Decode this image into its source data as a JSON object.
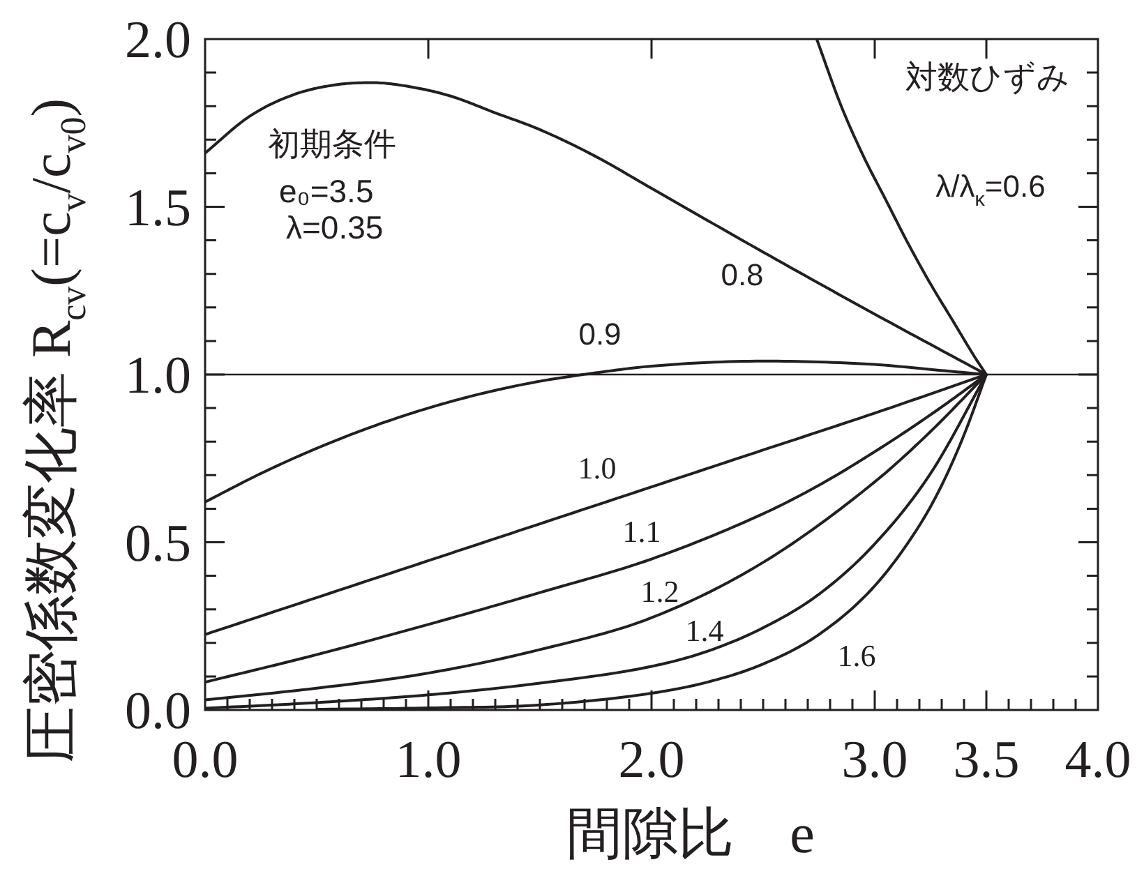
{
  "chart_data": {
    "type": "line",
    "xlabel": "間隙比　e",
    "ylabel": "圧密係数変化率 R$_{cv}$(=c$_{v}$/c$_{v0}$)",
    "xlim": [
      0,
      4
    ],
    "ylim": [
      0,
      2
    ],
    "xticks": [
      {
        "value": 0,
        "label": "0.0"
      },
      {
        "value": 0.1,
        "label": null
      },
      {
        "value": 0.2,
        "label": null
      },
      {
        "value": 0.3,
        "label": null
      },
      {
        "value": 0.4,
        "label": null
      },
      {
        "value": 0.5,
        "label": null
      },
      {
        "value": 0.6,
        "label": null
      },
      {
        "value": 0.7,
        "label": null
      },
      {
        "value": 0.8,
        "label": null
      },
      {
        "value": 0.9,
        "label": null
      },
      {
        "value": 1,
        "label": "1.0"
      },
      {
        "value": 1.1,
        "label": null
      },
      {
        "value": 1.2,
        "label": null
      },
      {
        "value": 1.3,
        "label": null
      },
      {
        "value": 1.4,
        "label": null
      },
      {
        "value": 1.5,
        "label": null
      },
      {
        "value": 1.6,
        "label": null
      },
      {
        "value": 1.7,
        "label": null
      },
      {
        "value": 1.8,
        "label": null
      },
      {
        "value": 1.9,
        "label": null
      },
      {
        "value": 2,
        "label": "2.0"
      },
      {
        "value": 2.1,
        "label": null
      },
      {
        "value": 2.2,
        "label": null
      },
      {
        "value": 2.3,
        "label": null
      },
      {
        "value": 2.4,
        "label": null
      },
      {
        "value": 2.5,
        "label": null
      },
      {
        "value": 2.6,
        "label": null
      },
      {
        "value": 2.7,
        "label": null
      },
      {
        "value": 2.8,
        "label": null
      },
      {
        "value": 2.9,
        "label": null
      },
      {
        "value": 3,
        "label": "3.0"
      },
      {
        "value": 3.1,
        "label": null
      },
      {
        "value": 3.2,
        "label": null
      },
      {
        "value": 3.3,
        "label": null
      },
      {
        "value": 3.4,
        "label": null
      },
      {
        "value": 3.5,
        "label": "3.5"
      },
      {
        "value": 3.6,
        "label": null
      },
      {
        "value": 3.7,
        "label": null
      },
      {
        "value": 3.8,
        "label": null
      },
      {
        "value": 3.9,
        "label": null
      },
      {
        "value": 4,
        "label": "4.0"
      }
    ],
    "yticks": [
      {
        "value": 0,
        "label": "0.0"
      },
      {
        "value": 0.1,
        "label": null
      },
      {
        "value": 0.2,
        "label": null
      },
      {
        "value": 0.3,
        "label": null
      },
      {
        "value": 0.4,
        "label": null
      },
      {
        "value": 0.5,
        "label": "0.5"
      },
      {
        "value": 0.6,
        "label": null
      },
      {
        "value": 0.7,
        "label": null
      },
      {
        "value": 0.8,
        "label": null
      },
      {
        "value": 0.9,
        "label": null
      },
      {
        "value": 1,
        "label": "1.0"
      },
      {
        "value": 1.1,
        "label": null
      },
      {
        "value": 1.2,
        "label": null
      },
      {
        "value": 1.3,
        "label": null
      },
      {
        "value": 1.4,
        "label": null
      },
      {
        "value": 1.5,
        "label": "1.5"
      },
      {
        "value": 1.6,
        "label": null
      },
      {
        "value": 1.7,
        "label": null
      },
      {
        "value": 1.8,
        "label": null
      },
      {
        "value": 1.9,
        "label": null
      },
      {
        "value": 2,
        "label": "2.0"
      }
    ],
    "series": [
      {
        "name": "λ/λ$_{κ}$=0.6",
        "color": "#231f20",
        "x": [
          2.74,
          2.85,
          2.95,
          3.05,
          3.15,
          3.25,
          3.35,
          3.45,
          3.5
        ],
        "values": [
          2.0,
          1.8,
          1.65,
          1.52,
          1.39,
          1.27,
          1.16,
          1.05,
          1.0
        ]
      },
      {
        "name": "0.8",
        "color": "#231f20",
        "x": [
          0,
          0.2,
          0.4,
          0.6,
          0.75,
          0.9,
          1.1,
          1.3,
          1.5,
          1.75,
          2.0,
          2.5,
          3.0,
          3.5
        ],
        "values": [
          1.66,
          1.77,
          1.835,
          1.865,
          1.87,
          1.86,
          1.83,
          1.78,
          1.73,
          1.65,
          1.555,
          1.365,
          1.18,
          1.0
        ]
      },
      {
        "name": "0.9",
        "color": "#231f20",
        "x": [
          0,
          0.25,
          0.5,
          0.75,
          1.0,
          1.25,
          1.5,
          1.75,
          2.0,
          2.5,
          3.0,
          3.25,
          3.5
        ],
        "values": [
          0.62,
          0.705,
          0.78,
          0.845,
          0.9,
          0.945,
          0.98,
          1.005,
          1.025,
          1.04,
          1.03,
          1.015,
          1.0
        ]
      },
      {
        "name": "1.0",
        "color": "#231f20",
        "x": [
          0,
          0.5,
          1.0,
          1.5,
          2.0,
          2.5,
          3.0,
          3.5
        ],
        "values": [
          0.225,
          0.335,
          0.445,
          0.555,
          0.665,
          0.775,
          0.885,
          1.0
        ]
      },
      {
        "name": "1.1",
        "color": "#231f20",
        "x": [
          0,
          0.5,
          1.0,
          1.5,
          2.0,
          2.5,
          2.75,
          3.0,
          3.25,
          3.5
        ],
        "values": [
          0.083,
          0.165,
          0.255,
          0.35,
          0.45,
          0.585,
          0.67,
          0.77,
          0.88,
          1.0
        ]
      },
      {
        "name": "1.2",
        "color": "#231f20",
        "x": [
          0,
          0.5,
          1.0,
          1.5,
          2.0,
          2.5,
          3.0,
          3.25,
          3.5
        ],
        "values": [
          0.03,
          0.065,
          0.11,
          0.18,
          0.275,
          0.44,
          0.68,
          0.83,
          1.0
        ]
      },
      {
        "name": "1.4",
        "color": "#231f20",
        "x": [
          0,
          0.5,
          1.0,
          1.5,
          2.0,
          2.25,
          2.5,
          2.75,
          3.0,
          3.25,
          3.5
        ],
        "values": [
          0.005,
          0.022,
          0.045,
          0.08,
          0.13,
          0.175,
          0.245,
          0.345,
          0.495,
          0.705,
          1.0
        ]
      },
      {
        "name": "1.6",
        "color": "#231f20",
        "x": [
          0.5,
          1.0,
          1.5,
          2.0,
          2.25,
          2.5,
          2.75,
          3.0,
          3.2,
          3.3,
          3.4,
          3.5
        ],
        "values": [
          0.002,
          0.006,
          0.015,
          0.05,
          0.083,
          0.137,
          0.225,
          0.37,
          0.55,
          0.67,
          0.82,
          1.0
        ]
      }
    ],
    "ref_lines": [
      {
        "axis": "y",
        "value": 1.0,
        "color": "#231f20"
      }
    ],
    "annotations": [
      "初期条件",
      "e₀=3.5",
      "λ=0.35",
      "対数ひずみ"
    ],
    "marker": "none",
    "line_style": "solid"
  }
}
